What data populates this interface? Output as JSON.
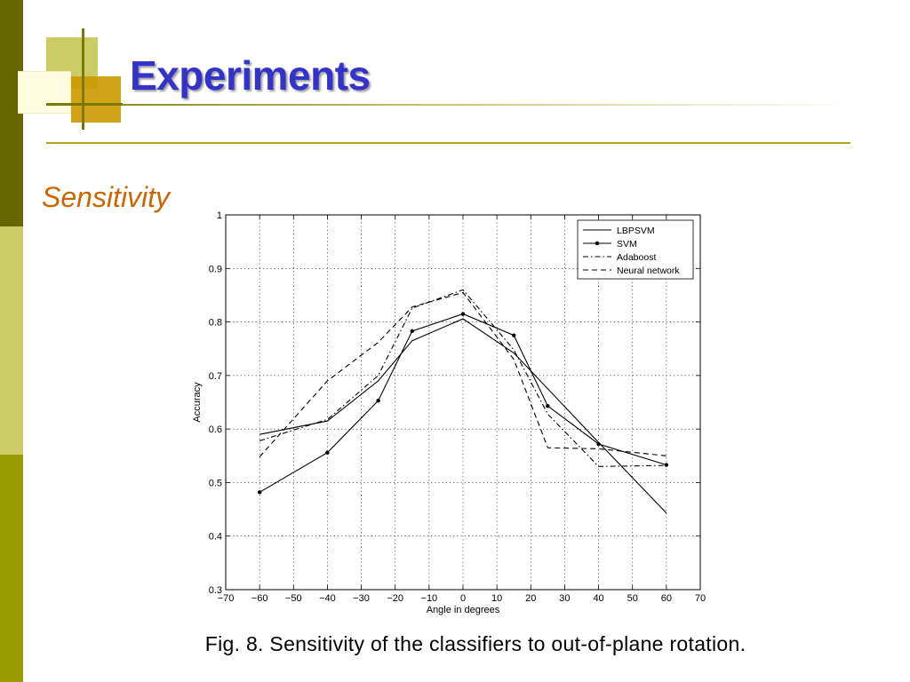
{
  "slide": {
    "title": "Experiments",
    "subtitle": "Sensitivity",
    "caption": "Fig. 8. Sensitivity of the classifiers to out-of-plane rotation."
  },
  "colors": {
    "title": "#3333cc",
    "subtitle": "#cc6600",
    "sidebar_dark": "#666600",
    "sidebar_light": "#cccc66",
    "sidebar_mid": "#999900",
    "rule": "#b3a31a"
  },
  "chart_data": {
    "type": "line",
    "title": "",
    "xlabel": "Angle in degrees",
    "ylabel": "Accuracy",
    "xlim": [
      -70,
      70
    ],
    "ylim": [
      0.3,
      1
    ],
    "xticks": [
      -70,
      -60,
      -50,
      -40,
      -30,
      -20,
      -10,
      0,
      10,
      20,
      30,
      40,
      50,
      60,
      70
    ],
    "yticks": [
      0.3,
      0.4,
      0.5,
      0.6,
      0.7,
      0.8,
      0.9,
      1
    ],
    "xtick_labels": [
      "−70",
      "−60",
      "−50",
      "−40",
      "−30",
      "−20",
      "−10",
      "0",
      "10",
      "20",
      "30",
      "40",
      "50",
      "60",
      "70"
    ],
    "ytick_labels": [
      "0.3",
      "0.4",
      "0.5",
      "0.6",
      "0.7",
      "0.8",
      "0.9",
      "1"
    ],
    "grid": true,
    "legend_position": "top-right",
    "series": [
      {
        "name": "LBPSVM",
        "style": "solid",
        "marker": "none",
        "x": [
          -60,
          -40,
          -25,
          -15,
          0,
          15,
          40,
          60
        ],
        "y": [
          0.59,
          0.615,
          0.69,
          0.765,
          0.806,
          0.742,
          0.575,
          0.443
        ]
      },
      {
        "name": "SVM",
        "style": "solid",
        "marker": "dot",
        "x": [
          -60,
          -40,
          -25,
          -15,
          0,
          15,
          25,
          40,
          60
        ],
        "y": [
          0.482,
          0.556,
          0.653,
          0.783,
          0.815,
          0.775,
          0.643,
          0.572,
          0.533
        ]
      },
      {
        "name": "Adaboost",
        "style": "dashdot",
        "marker": "none",
        "x": [
          -60,
          -40,
          -25,
          -15,
          0,
          15,
          25,
          40,
          60
        ],
        "y": [
          0.578,
          0.618,
          0.7,
          0.826,
          0.86,
          0.748,
          0.628,
          0.53,
          0.532
        ]
      },
      {
        "name": "Neural network",
        "style": "dashed",
        "marker": "none",
        "x": [
          -60,
          -40,
          -25,
          -15,
          0,
          15,
          25,
          40,
          60
        ],
        "y": [
          0.548,
          0.69,
          0.762,
          0.828,
          0.855,
          0.73,
          0.565,
          0.563,
          0.55
        ]
      }
    ]
  }
}
